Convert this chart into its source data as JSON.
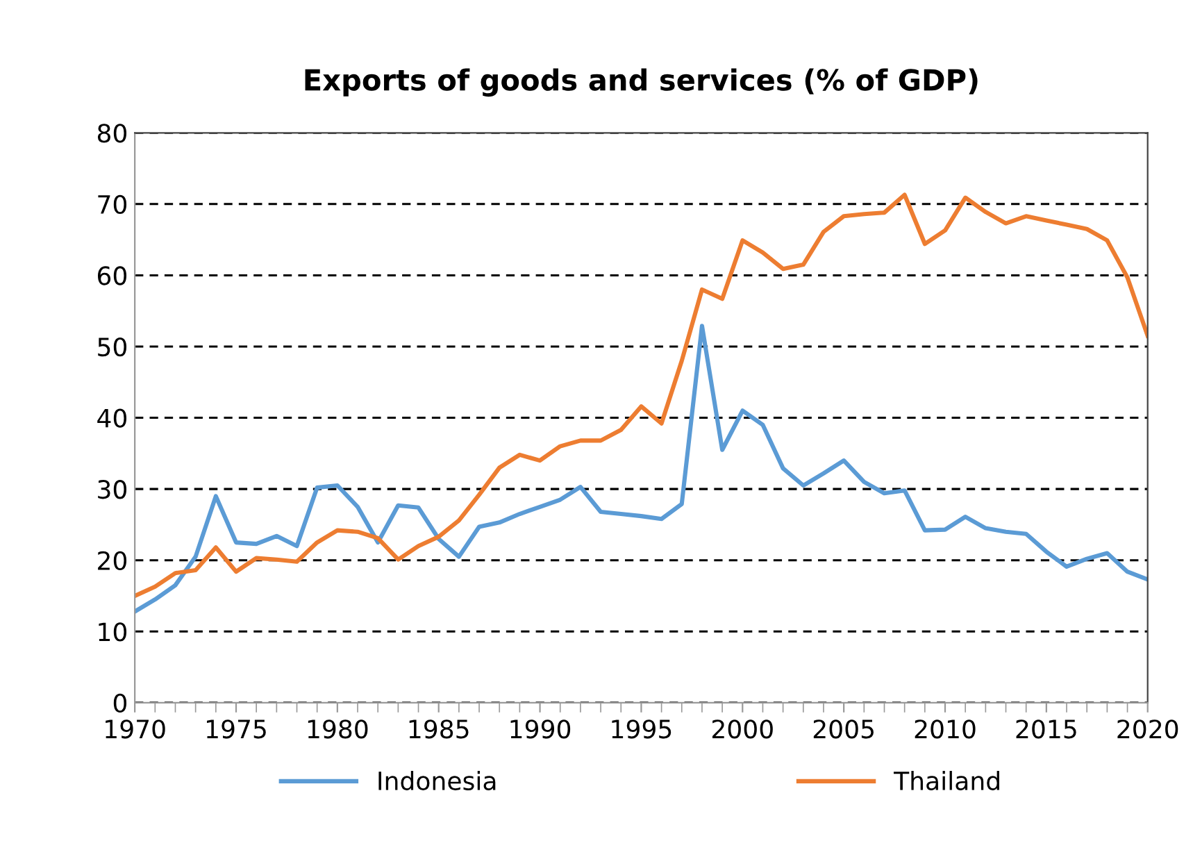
{
  "chart_data": {
    "type": "line",
    "title": "Exports of goods and services (% of GDP)",
    "x": [
      1970,
      1971,
      1972,
      1973,
      1974,
      1975,
      1976,
      1977,
      1978,
      1979,
      1980,
      1981,
      1982,
      1983,
      1984,
      1985,
      1986,
      1987,
      1988,
      1989,
      1990,
      1991,
      1992,
      1993,
      1994,
      1995,
      1996,
      1997,
      1998,
      1999,
      2000,
      2001,
      2002,
      2003,
      2004,
      2005,
      2006,
      2007,
      2008,
      2009,
      2010,
      2011,
      2012,
      2013,
      2014,
      2015,
      2016,
      2017,
      2018,
      2019,
      2020
    ],
    "series": [
      {
        "name": "Indonesia",
        "color": "#5b9bd5",
        "values": [
          12.8,
          14.5,
          16.5,
          20.5,
          29,
          22.5,
          22.3,
          23.4,
          22,
          30.2,
          30.5,
          27.5,
          22.5,
          27.7,
          27.4,
          23,
          20.5,
          24.7,
          25.3,
          26.5,
          27.5,
          28.5,
          30.3,
          26.8,
          26.5,
          26.2,
          25.8,
          27.9,
          52.9,
          35.5,
          41,
          39,
          32.9,
          30.5,
          32.2,
          34,
          31,
          29.4,
          29.8,
          24.2,
          24.3,
          26.1,
          24.5,
          24,
          23.7,
          21.2,
          19.1,
          20.2,
          21,
          18.4,
          17.3
        ]
      },
      {
        "name": "Thailand",
        "color": "#ed7d31",
        "values": [
          15,
          16.3,
          18.2,
          18.6,
          21.8,
          18.4,
          20.3,
          20.1,
          19.8,
          22.5,
          24.2,
          24,
          23.1,
          20.1,
          22,
          23.3,
          25.6,
          29.2,
          33,
          34.8,
          34,
          36,
          36.8,
          36.8,
          38.3,
          41.6,
          39.2,
          48,
          58,
          56.7,
          64.9,
          63.2,
          60.9,
          61.5,
          66.1,
          68.3,
          68.6,
          68.8,
          71.3,
          64.4,
          66.3,
          70.9,
          68.9,
          67.3,
          68.3,
          67.7,
          67.1,
          66.5,
          64.9,
          59.7,
          51.5
        ]
      }
    ],
    "xlim": [
      1970,
      2020
    ],
    "xticks": [
      1970,
      1975,
      1980,
      1985,
      1990,
      1995,
      2000,
      2005,
      2010,
      2015,
      2020
    ],
    "ylim": [
      0,
      80
    ],
    "yticks": [
      0,
      10,
      20,
      30,
      40,
      50,
      60,
      70,
      80
    ],
    "grid": "y",
    "legend": "bottom",
    "line_style": "solid",
    "marker": "none"
  }
}
